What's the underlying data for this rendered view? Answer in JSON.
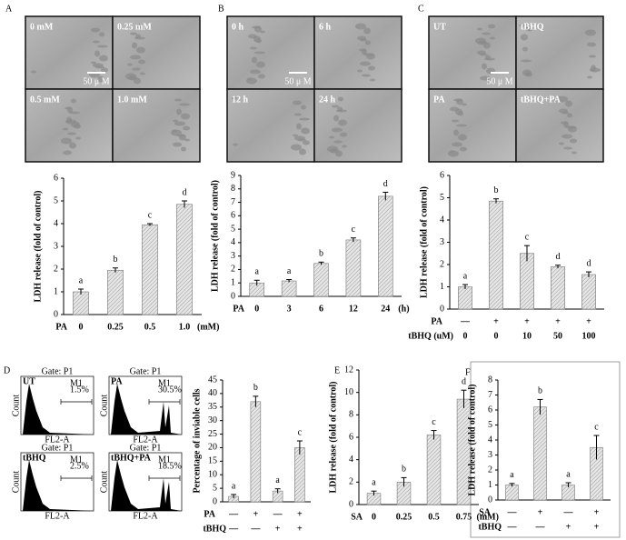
{
  "panel_letters": [
    "A",
    "B",
    "C",
    "D",
    "E",
    "F"
  ],
  "micrographs": [
    {
      "labels": [
        "0 mM",
        "0.25 mM",
        "0.5 mM",
        "1.0 mM"
      ],
      "scale": "50 μ M"
    },
    {
      "labels": [
        "0 h",
        "6 h",
        "12 h",
        "24 h"
      ],
      "scale": "50 μ M"
    },
    {
      "labels": [
        "UT",
        "tBHQ",
        "PA",
        "tBHQ+PA"
      ],
      "scale": "50 μ M"
    }
  ],
  "flow_cytometry": {
    "y_label": "Count",
    "x_label": "FL2-A",
    "marker": "M1",
    "gate": "Gate: P1",
    "samples": [
      {
        "label": "UT",
        "percent": "1.5%"
      },
      {
        "label": "PA",
        "percent": "30.5%"
      },
      {
        "label": "tBHQ",
        "percent": "2.5%"
      },
      {
        "label": "tBHQ+PA",
        "percent": "18.5%"
      }
    ]
  },
  "chart_data": [
    {
      "type": "bar",
      "ylabel": "LDH release (fold of control)",
      "ylim": [
        0,
        6
      ],
      "yticks": [
        0,
        1,
        2,
        3,
        4,
        5,
        6
      ],
      "rows": [
        {
          "name": "PA",
          "labels": [
            "0",
            "0.25",
            "0.5",
            "1.0"
          ]
        }
      ],
      "unit": "(mM)",
      "values": [
        1.0,
        1.95,
        3.95,
        4.85
      ],
      "errors": [
        0.12,
        0.1,
        0.05,
        0.15
      ],
      "annotations": [
        "a",
        "b",
        "c",
        "d"
      ]
    },
    {
      "type": "bar",
      "ylabel": "LDH release (fold of control)",
      "ylim": [
        0,
        9
      ],
      "yticks": [
        0,
        1,
        2,
        3,
        4,
        5,
        6,
        7,
        8,
        9
      ],
      "rows": [
        {
          "name": "PA",
          "labels": [
            "0",
            "3",
            "6",
            "12",
            "24"
          ]
        }
      ],
      "unit": "(h)",
      "values": [
        1.0,
        1.15,
        2.45,
        4.2,
        7.45
      ],
      "errors": [
        0.2,
        0.1,
        0.1,
        0.15,
        0.3
      ],
      "annotations": [
        "a",
        "a",
        "b",
        "c",
        "d"
      ]
    },
    {
      "type": "bar",
      "ylabel": "LDH release (fold of control)",
      "ylim": [
        0,
        6
      ],
      "yticks": [
        0,
        1,
        2,
        3,
        4,
        5,
        6
      ],
      "rows": [
        {
          "name": "PA",
          "labels": [
            "—",
            "+",
            "+",
            "+",
            "+"
          ]
        },
        {
          "name": "tBHQ (uM)",
          "labels": [
            "0",
            "0",
            "10",
            "50",
            "100"
          ]
        }
      ],
      "values": [
        1.0,
        4.85,
        2.5,
        1.9,
        1.55
      ],
      "errors": [
        0.1,
        0.1,
        0.35,
        0.07,
        0.12
      ],
      "annotations": [
        "a",
        "b",
        "c",
        "d",
        "d"
      ]
    },
    {
      "type": "bar",
      "ylabel": "Percentage of inviable cells",
      "ylim": [
        0,
        45
      ],
      "yticks": [
        0,
        5,
        10,
        15,
        20,
        25,
        30,
        35,
        40,
        45
      ],
      "rows": [
        {
          "name": "PA",
          "labels": [
            "—",
            "+",
            "—",
            "+"
          ]
        },
        {
          "name": "tBHQ",
          "labels": [
            "—",
            "—",
            "+",
            "+"
          ]
        }
      ],
      "values": [
        2,
        37,
        4,
        20
      ],
      "errors": [
        0.7,
        2,
        0.8,
        2.5
      ],
      "annotations": [
        "a",
        "b",
        "a",
        "c"
      ]
    },
    {
      "type": "bar",
      "ylabel": "LDH release (fold of control)",
      "ylim": [
        0,
        12
      ],
      "yticks": [
        0,
        2,
        4,
        6,
        8,
        10,
        12
      ],
      "rows": [
        {
          "name": "SA",
          "labels": [
            "0",
            "0.25",
            "0.5",
            "0.75"
          ]
        }
      ],
      "unit": "(mM)",
      "values": [
        1.0,
        2.0,
        6.2,
        9.4
      ],
      "errors": [
        0.2,
        0.4,
        0.4,
        0.8
      ],
      "annotations": [
        "a",
        "b",
        "c",
        "d"
      ]
    },
    {
      "type": "bar",
      "ylabel": "LDH release (fold of control)",
      "ylim": [
        0,
        8
      ],
      "yticks": [
        0,
        1,
        2,
        3,
        4,
        5,
        6,
        7,
        8
      ],
      "rows": [
        {
          "name": "SA",
          "labels": [
            "—",
            "+",
            "—",
            "+"
          ]
        },
        {
          "name": "tBHQ",
          "labels": [
            "—",
            "—",
            "+",
            "+"
          ]
        }
      ],
      "values": [
        1.0,
        6.2,
        1.0,
        3.5
      ],
      "errors": [
        0.1,
        0.5,
        0.15,
        0.8
      ],
      "annotations": [
        "a",
        "b",
        "a",
        "c"
      ]
    }
  ]
}
